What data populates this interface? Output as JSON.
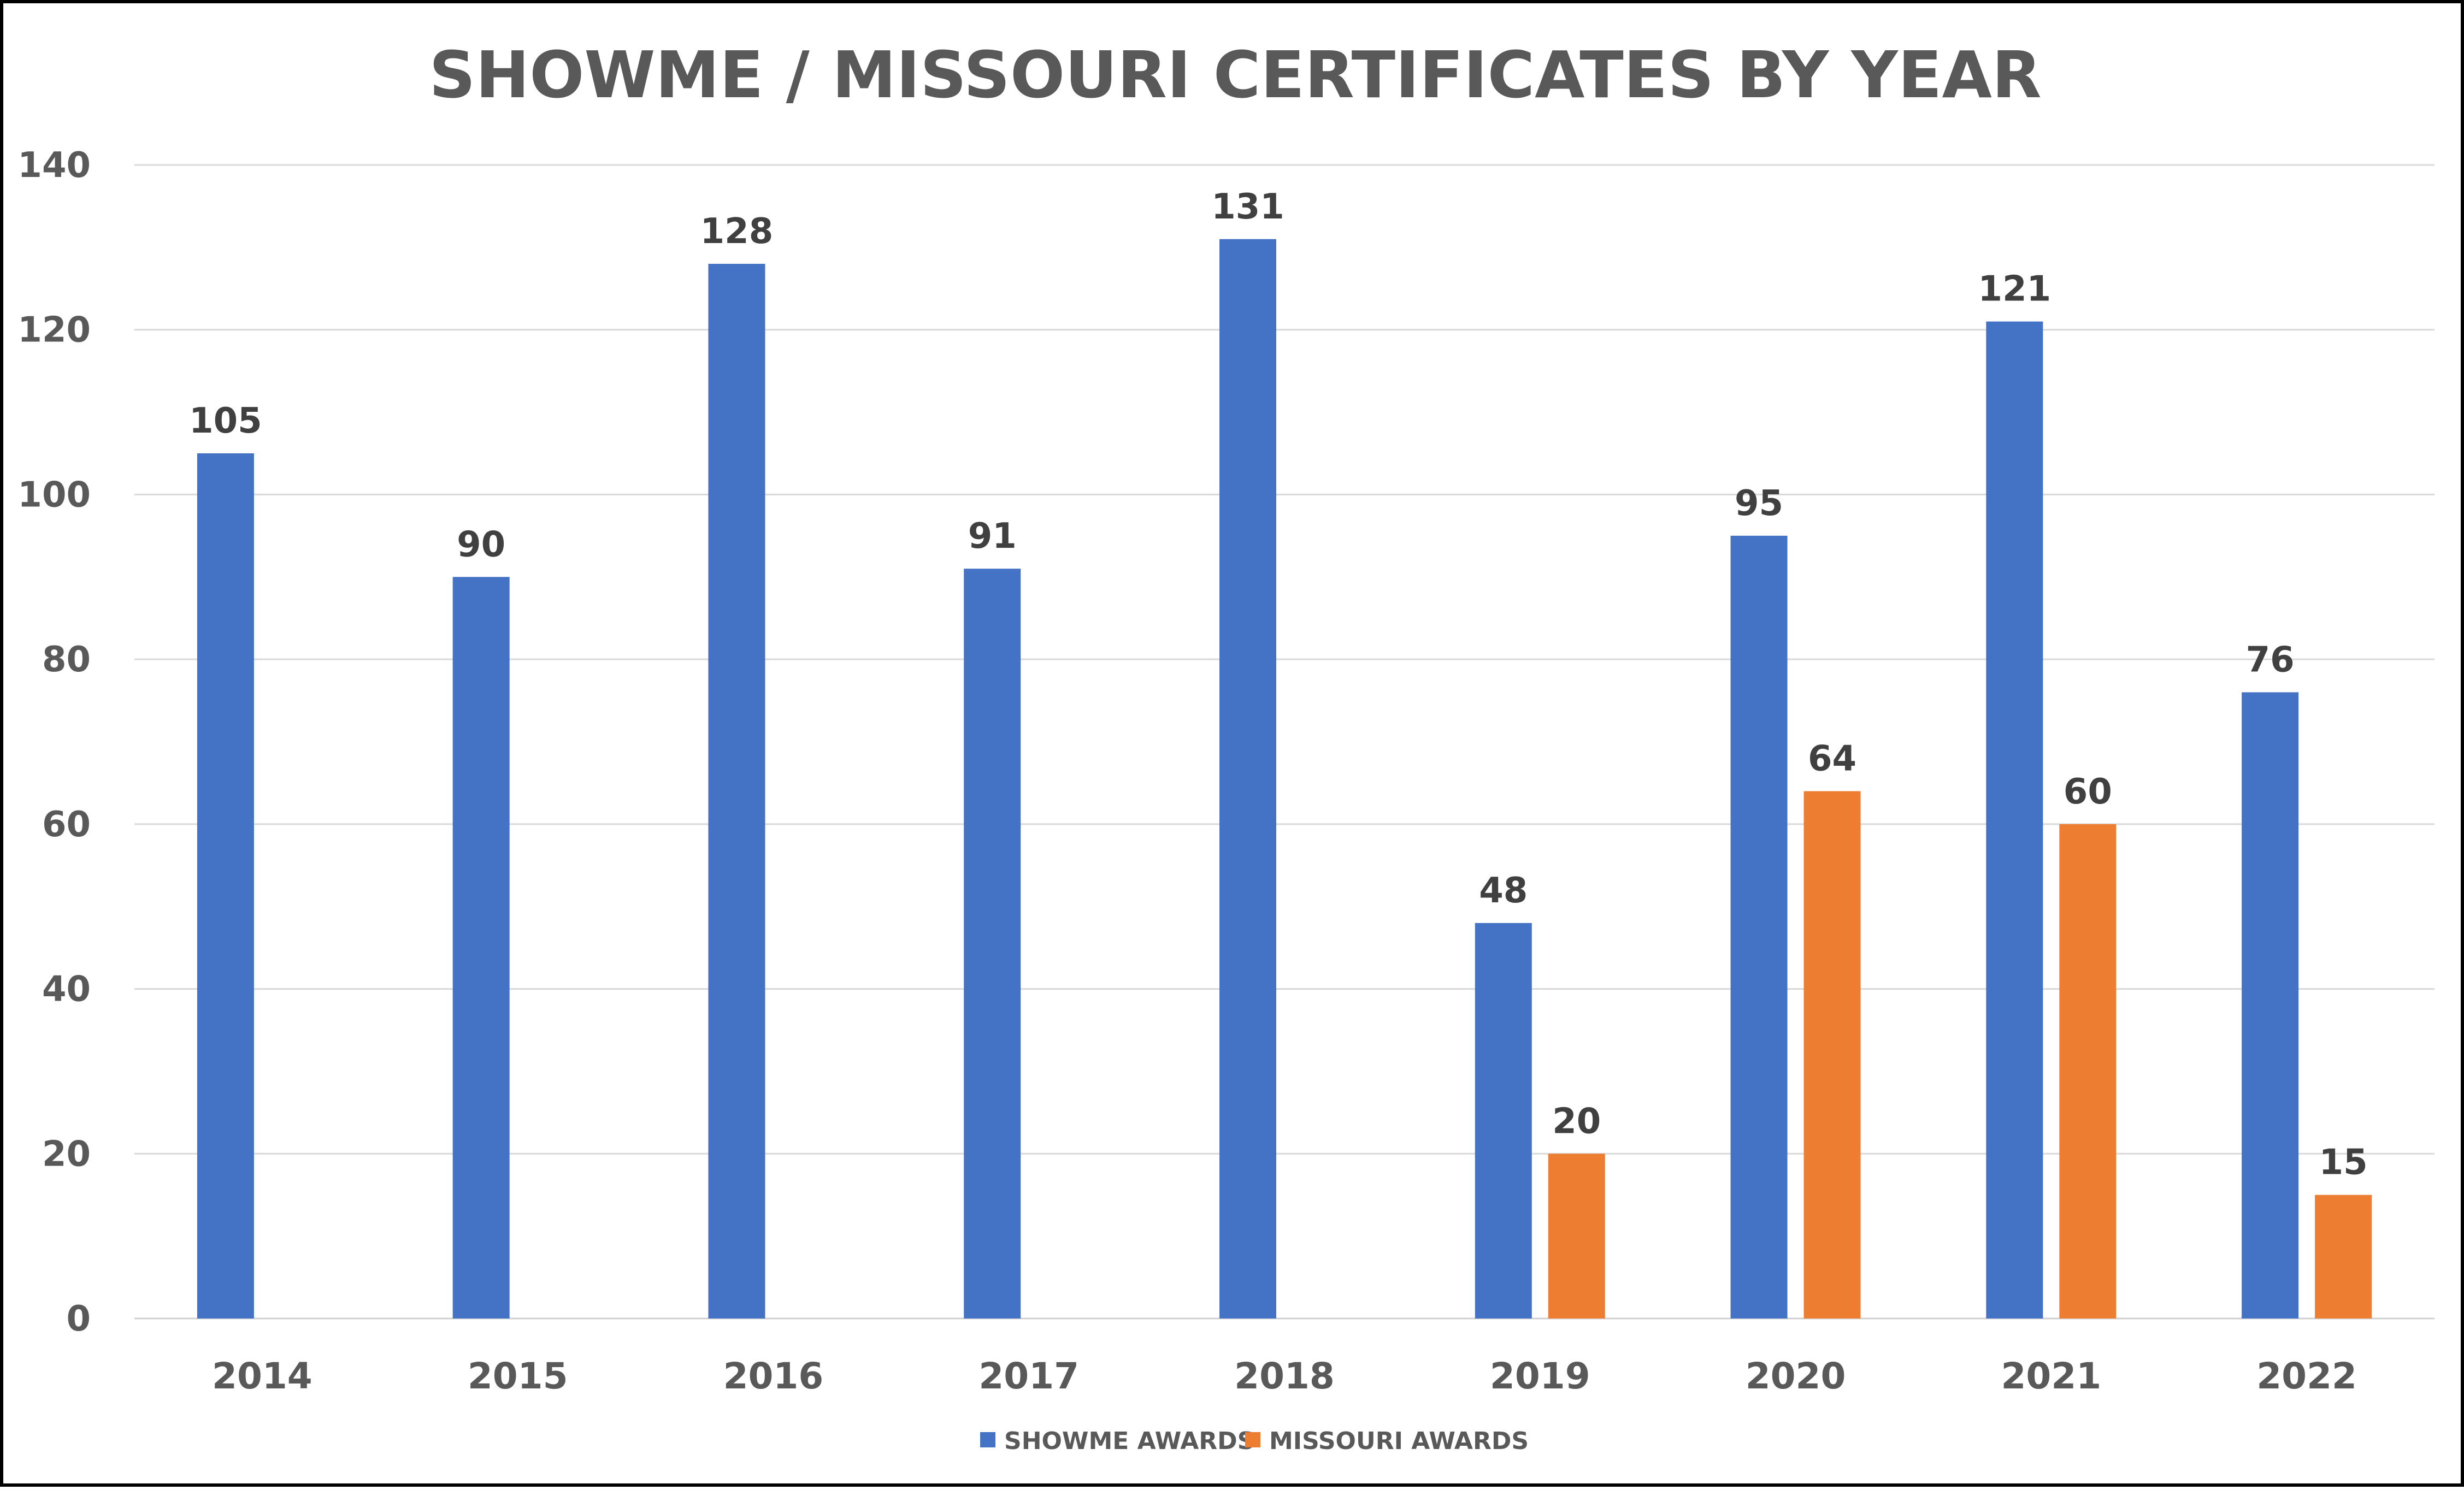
{
  "chart_data": {
    "type": "bar",
    "title": "SHOWME / MISSOURI CERTIFICATES BY YEAR",
    "xlabel": "",
    "ylabel": "",
    "ylim": [
      0,
      140
    ],
    "yticks": [
      0,
      20,
      40,
      60,
      80,
      100,
      120,
      140
    ],
    "grid": true,
    "legend_position": "bottom",
    "categories": [
      "2014",
      "2015",
      "2016",
      "2017",
      "2018",
      "2019",
      "2020",
      "2021",
      "2022"
    ],
    "series": [
      {
        "name": "SHOWME AWARDS",
        "color": "#4472C4",
        "values": [
          105,
          90,
          128,
          91,
          131,
          48,
          95,
          121,
          76
        ]
      },
      {
        "name": "MISSOURI AWARDS",
        "color": "#ED7D31",
        "values": [
          null,
          null,
          null,
          null,
          null,
          20,
          64,
          60,
          15
        ]
      }
    ]
  }
}
